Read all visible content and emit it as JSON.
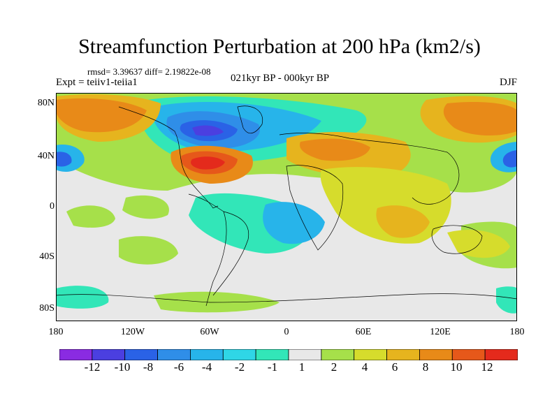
{
  "title": "Streamfunction Perturbation at 200 hPa (km2/s)",
  "stats": "rmsd= 3.39637 diff= 2.19822e-08",
  "experiment": "Expt = teiiv1-teiia1",
  "period": "021kyr BP - 000kyr BP",
  "season": "DJF",
  "axes": {
    "y_ticks": [
      "80N",
      "40N",
      "0",
      "40S",
      "80S"
    ],
    "x_ticks": [
      "180",
      "120W",
      "60W",
      "0",
      "60E",
      "120E",
      "180"
    ]
  },
  "colorbar": {
    "labels": [
      "-12",
      "-10",
      "-8",
      "-6",
      "-4",
      "-2",
      "-1",
      "1",
      "2",
      "4",
      "6",
      "8",
      "10",
      "12"
    ],
    "colors": [
      "#8a2be2",
      "#4b3fe0",
      "#2a62e6",
      "#2f8ee8",
      "#27b4ea",
      "#2fd6e6",
      "#32e6b8",
      "#e8e8e8",
      "#a6e04a",
      "#d6dc2c",
      "#e6b41e",
      "#e88a18",
      "#e6581a",
      "#e42a1c"
    ]
  }
}
